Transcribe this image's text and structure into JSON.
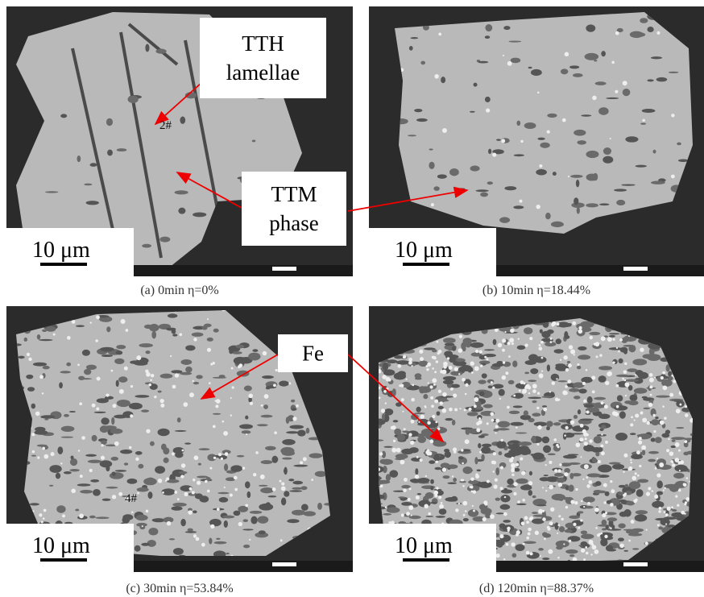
{
  "panels": [
    {
      "caption": "(a) 0min η=0%",
      "scale": "10 μm",
      "points": [
        "2#"
      ]
    },
    {
      "caption": "(b) 10min η=18.44%",
      "scale": "10 μm",
      "points": []
    },
    {
      "caption": "(c) 30min η=53.84%",
      "scale": "10 μm",
      "points": [
        "4#"
      ]
    },
    {
      "caption": "(d) 120min η=88.37%",
      "scale": "10 μm",
      "points": []
    }
  ],
  "annotations": [
    {
      "lines": [
        "TTH",
        "lamellae"
      ]
    },
    {
      "lines": [
        "TTM",
        "phase"
      ]
    },
    {
      "lines": [
        "Fe"
      ]
    }
  ]
}
